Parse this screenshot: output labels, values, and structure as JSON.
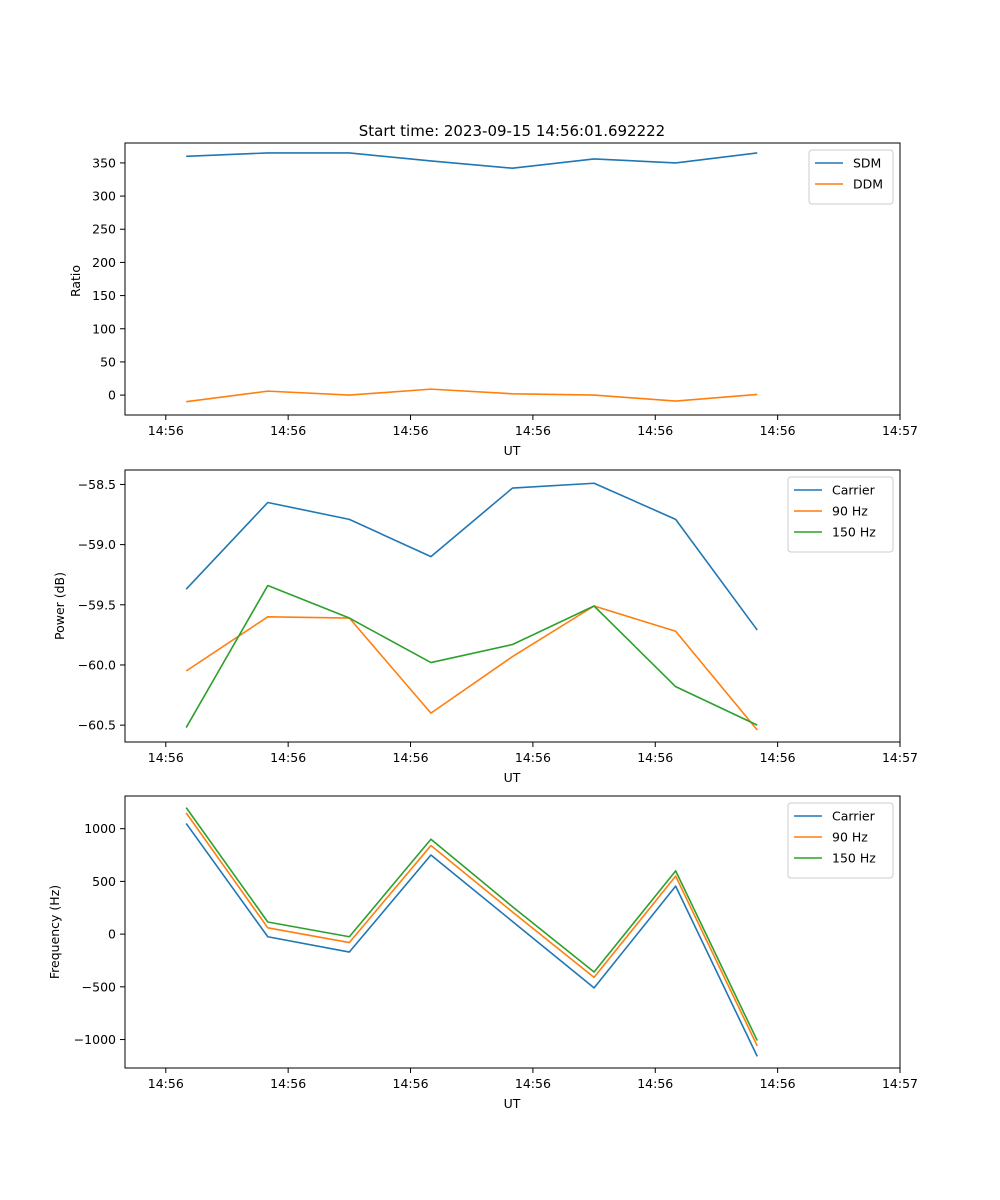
{
  "colors": {
    "blue": "#1f77b4",
    "orange": "#ff7f0e",
    "green": "#2ca02c",
    "axis": "#000000",
    "legend_border": "#cccccc"
  },
  "chart_data": [
    {
      "id": "ratio",
      "type": "line",
      "title": "Start time: 2023-09-15 14:56:01.692222",
      "xlabel": "UT",
      "ylabel": "Ratio",
      "grid": false,
      "legend_position": "top-right",
      "xlim": [
        -0.5,
        9.0
      ],
      "ylim": [
        -30,
        380
      ],
      "xticks": [
        0,
        1.5,
        3,
        4.5,
        6,
        7.5,
        9
      ],
      "xtick_labels": [
        "14:56",
        "14:56",
        "14:56",
        "14:56",
        "14:56",
        "14:56",
        "14:57"
      ],
      "yticks": [
        0,
        50,
        100,
        150,
        200,
        250,
        300,
        350
      ],
      "ytick_labels": [
        "0",
        "50",
        "100",
        "150",
        "200",
        "250",
        "300",
        "350"
      ],
      "x": [
        0.25,
        1.25,
        2.25,
        3.25,
        4.25,
        5.25,
        6.25,
        7.25
      ],
      "series": [
        {
          "name": "SDM",
          "color": "#1f77b4",
          "values": [
            360,
            365,
            365,
            353,
            342,
            356,
            350,
            365
          ]
        },
        {
          "name": "DDM",
          "color": "#ff7f0e",
          "values": [
            -10,
            6,
            0,
            9,
            2,
            0,
            -9,
            1
          ]
        }
      ]
    },
    {
      "id": "power",
      "type": "line",
      "title": "",
      "xlabel": "UT",
      "ylabel": "Power (dB)",
      "grid": false,
      "legend_position": "top-right",
      "xlim": [
        -0.5,
        9.0
      ],
      "ylim": [
        -60.64,
        -58.38
      ],
      "xticks": [
        0,
        1.5,
        3,
        4.5,
        6,
        7.5,
        9
      ],
      "xtick_labels": [
        "14:56",
        "14:56",
        "14:56",
        "14:56",
        "14:56",
        "14:56",
        "14:57"
      ],
      "yticks": [
        -60.5,
        -60.0,
        -59.5,
        -59.0,
        -58.5
      ],
      "ytick_labels": [
        "−60.5",
        "−60.0",
        "−59.5",
        "−59.0",
        "−58.5"
      ],
      "x": [
        0.25,
        1.25,
        2.25,
        3.25,
        4.25,
        5.25,
        6.25,
        7.25
      ],
      "series": [
        {
          "name": "Carrier",
          "color": "#1f77b4",
          "values": [
            -59.37,
            -58.65,
            -58.79,
            -59.1,
            -58.53,
            -58.49,
            -58.79,
            -59.71
          ]
        },
        {
          "name": "90 Hz",
          "color": "#ff7f0e",
          "values": [
            -60.05,
            -59.6,
            -59.61,
            -60.4,
            -59.93,
            -59.51,
            -59.72,
            -60.54
          ]
        },
        {
          "name": "150 Hz",
          "color": "#2ca02c",
          "values": [
            -60.52,
            -59.34,
            -59.61,
            -59.98,
            -59.83,
            -59.51,
            -60.18,
            -60.5
          ]
        }
      ]
    },
    {
      "id": "frequency",
      "type": "line",
      "title": "",
      "xlabel": "UT",
      "ylabel": "Frequency (Hz)",
      "grid": false,
      "legend_position": "top-right",
      "xlim": [
        -0.5,
        9.0
      ],
      "ylim": [
        -1270,
        1310
      ],
      "xticks": [
        0,
        1.5,
        3,
        4.5,
        6,
        7.5,
        9
      ],
      "xtick_labels": [
        "14:56",
        "14:56",
        "14:56",
        "14:56",
        "14:56",
        "14:56",
        "14:57"
      ],
      "yticks": [
        -1000,
        -500,
        0,
        500,
        1000
      ],
      "ytick_labels": [
        "−1000",
        "−500",
        "0",
        "500",
        "1000"
      ],
      "x": [
        0.25,
        1.25,
        2.25,
        3.25,
        4.25,
        5.25,
        6.25,
        7.25
      ],
      "series": [
        {
          "name": "Carrier",
          "color": "#1f77b4",
          "values": [
            1050,
            -25,
            -170,
            750,
            120,
            -510,
            455,
            -1160
          ]
        },
        {
          "name": "90 Hz",
          "color": "#ff7f0e",
          "values": [
            1150,
            60,
            -80,
            840,
            210,
            -410,
            550,
            -1060
          ]
        },
        {
          "name": "150 Hz",
          "color": "#2ca02c",
          "values": [
            1200,
            115,
            -25,
            900,
            260,
            -360,
            600,
            -1010
          ]
        }
      ]
    }
  ]
}
